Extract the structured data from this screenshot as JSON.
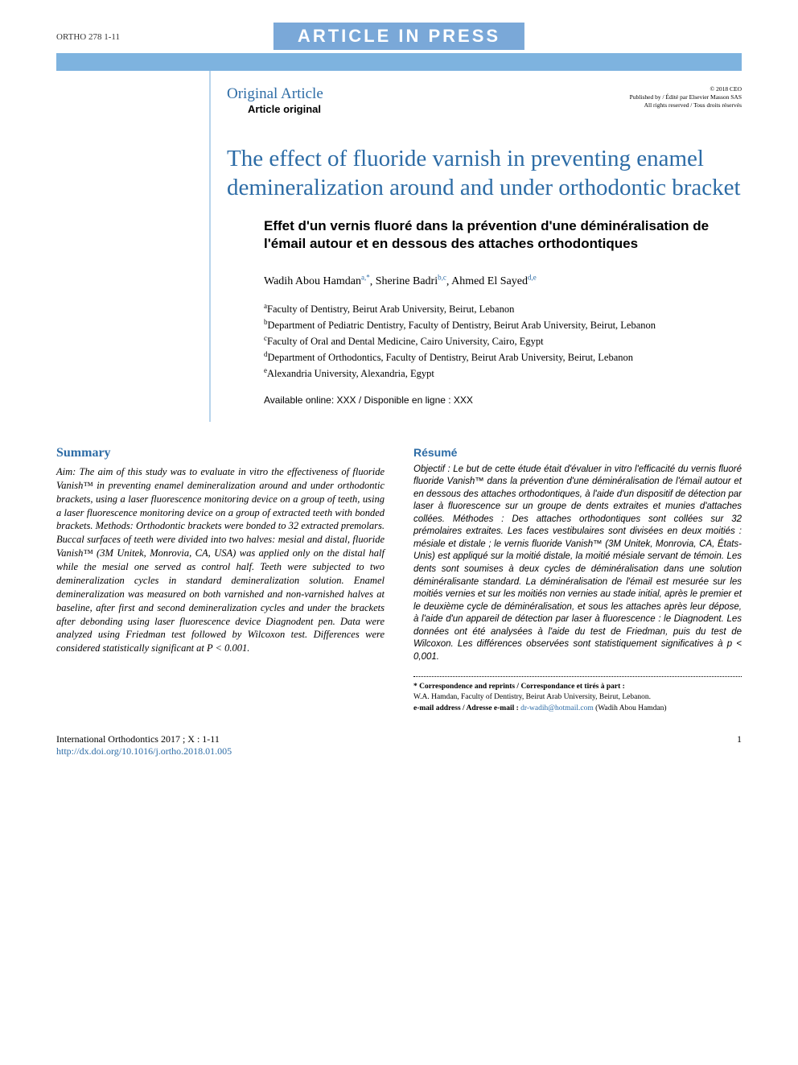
{
  "header": {
    "ref": "ORTHO 278 1-11",
    "banner": "ARTICLE IN PRESS"
  },
  "colors": {
    "accent": "#2d6ca6",
    "banner_bg": "#7aa8d8",
    "bar": "#7eb3df"
  },
  "card": {
    "orig_en": "Original Article",
    "orig_fr": "Article original",
    "copyright_1": "© 2018 CEO",
    "copyright_2": "Published by / Édité par Elsevier Masson SAS",
    "copyright_3": "All rights reserved / Tous droits réservés"
  },
  "title_en": "The effect of fluoride varnish in preventing enamel demineralization around and under orthodontic bracket",
  "title_fr": "Effet d'un vernis fluoré dans la prévention d'une déminéralisation de l'émail autour et en dessous des attaches orthodontiques",
  "authors": [
    {
      "name": "Wadih Abou Hamdan",
      "marks": "a,*"
    },
    {
      "name": "Sherine Badri",
      "marks": "b,c"
    },
    {
      "name": "Ahmed El Sayed",
      "marks": "d,e"
    }
  ],
  "affiliations": [
    {
      "mark": "a",
      "text": "Faculty of Dentistry, Beirut Arab University, Beirut, Lebanon"
    },
    {
      "mark": "b",
      "text": "Department of Pediatric Dentistry, Faculty of Dentistry, Beirut Arab University, Beirut, Lebanon"
    },
    {
      "mark": "c",
      "text": "Faculty of Oral and Dental Medicine, Cairo University, Cairo, Egypt"
    },
    {
      "mark": "d",
      "text": "Department of Orthodontics, Faculty of Dentistry, Beirut Arab University, Beirut, Lebanon"
    },
    {
      "mark": "e",
      "text": "Alexandria University, Alexandria, Egypt"
    }
  ],
  "available": "Available online: XXX / Disponible en ligne : XXX",
  "summary": {
    "heading": "Summary",
    "body": "Aim: The aim of this study was to evaluate in vitro the effectiveness of fluoride Vanish™ in preventing enamel demineralization around and under orthodontic brackets, using a laser fluorescence monitoring device on a group of teeth, using a laser fluorescence monitoring device on a group of extracted teeth with bonded brackets.\nMethods: Orthodontic brackets were bonded to 32 extracted premolars. Buccal surfaces of teeth were divided into two halves: mesial and distal, fluoride Vanish™ (3M Unitek, Monrovia, CA, USA) was applied only on the distal half while the mesial one served as control half. Teeth were subjected to two demineralization cycles in standard demineralization solution. Enamel demineralization was measured on both varnished and non-varnished halves at baseline, after first and second demineralization cycles and under the brackets after debonding using laser fluorescence device Diagnodent pen. Data were analyzed using Friedman test followed by Wilcoxon test. Differences were considered statistically significant at P < 0.001."
  },
  "resume": {
    "heading": "Résumé",
    "body": "Objectif : Le but de cette étude était d'évaluer in vitro l'efficacité du vernis fluoré fluoride Vanish™ dans la prévention d'une déminéralisation de l'émail autour et en dessous des attaches orthodontiques, à l'aide d'un dispositif de détection par laser à fluorescence sur un groupe de dents extraites et munies d'attaches collées.\nMéthodes : Des attaches orthodontiques sont collées sur 32 prémolaires extraites. Les faces vestibulaires sont divisées en deux moitiés : mésiale et distale ; le vernis fluoride Vanish™ (3M Unitek, Monrovia, CA, États-Unis) est appliqué sur la moitié distale, la moitié mésiale servant de témoin. Les dents sont soumises à deux cycles de déminéralisation dans une solution déminéralisante standard. La déminéralisation de l'émail est mesurée sur les moitiés vernies et sur les moitiés non vernies au stade initial, après le premier et le deuxième cycle de déminéralisation, et sous les attaches après leur dépose, à l'aide d'un appareil de détection par laser à fluorescence : le Diagnodent. Les données ont été analysées à l'aide du test de Friedman, puis du test de Wilcoxon. Les différences observées sont statistiquement significatives à p < 0,001."
  },
  "correspondence": {
    "label": "* Correspondence and reprints / Correspondance et tirés à part :",
    "line": "W.A. Hamdan, Faculty of Dentistry, Beirut Arab University, Beirut, Lebanon.",
    "email_label": "e-mail address / Adresse e-mail :",
    "email": "dr-wadih@hotmail.com",
    "email_name": "(Wadih Abou Hamdan)"
  },
  "footer": {
    "journal": "International Orthodontics 2017 ; X : 1-11",
    "doi": "http://dx.doi.org/10.1016/j.ortho.2018.01.005",
    "page": "1"
  }
}
